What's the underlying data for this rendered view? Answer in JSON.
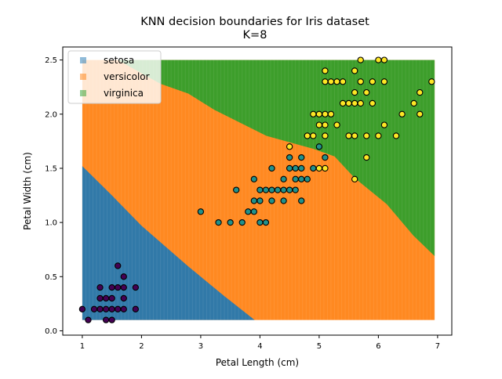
{
  "chart_data": {
    "type": "scatter",
    "title": "KNN decision boundaries for Iris dataset",
    "subtitle": "K=8",
    "xlabel": "Petal Length (cm)",
    "ylabel": "Petal Width (cm)",
    "xlim": [
      0.67,
      7.24
    ],
    "ylim": [
      -0.04,
      2.62
    ],
    "xticks": [
      1,
      2,
      3,
      4,
      5,
      6,
      7
    ],
    "xtick_labels": [
      "1",
      "2",
      "3",
      "4",
      "5",
      "6",
      "7"
    ],
    "yticks": [
      0.0,
      0.5,
      1.0,
      1.5,
      2.0,
      2.5
    ],
    "ytick_labels": [
      "0.0",
      "0.5",
      "1.0",
      "1.5",
      "2.0",
      "2.5"
    ],
    "grid": false,
    "legend_placement": "upper-left",
    "legend": [
      {
        "label": "setosa",
        "color": "#1f77b4"
      },
      {
        "label": "versicolor",
        "color": "#ff7f0e"
      },
      {
        "label": "virginica",
        "color": "#2ca02c"
      }
    ],
    "regions": {
      "extent_x": [
        1.0,
        6.95
      ],
      "extent_y": [
        0.1,
        2.5
      ],
      "setosa_boundary": [
        [
          1.0,
          1.52
        ],
        [
          1.5,
          1.25
        ],
        [
          2.0,
          0.97
        ],
        [
          2.8,
          0.59
        ],
        [
          3.4,
          0.32
        ],
        [
          3.91,
          0.1
        ]
      ],
      "virginica_boundary": [
        [
          1.6,
          2.5
        ],
        [
          2.32,
          2.28
        ],
        [
          2.79,
          2.19
        ],
        [
          3.23,
          2.04
        ],
        [
          4.11,
          1.8
        ],
        [
          4.9,
          1.68
        ],
        [
          5.26,
          1.61
        ],
        [
          5.6,
          1.41
        ],
        [
          6.14,
          1.17
        ],
        [
          6.59,
          0.88
        ],
        [
          6.95,
          0.69
        ]
      ]
    },
    "series": [
      {
        "class": "setosa",
        "color": "#440154",
        "points": [
          [
            1.1,
            0.1
          ],
          [
            1.4,
            0.1
          ],
          [
            1.5,
            0.1
          ],
          [
            1.0,
            0.2
          ],
          [
            1.2,
            0.2
          ],
          [
            1.3,
            0.2
          ],
          [
            1.4,
            0.2
          ],
          [
            1.5,
            0.2
          ],
          [
            1.6,
            0.2
          ],
          [
            1.7,
            0.2
          ],
          [
            1.9,
            0.2
          ],
          [
            1.3,
            0.3
          ],
          [
            1.4,
            0.3
          ],
          [
            1.5,
            0.3
          ],
          [
            1.7,
            0.3
          ],
          [
            1.3,
            0.4
          ],
          [
            1.5,
            0.4
          ],
          [
            1.6,
            0.4
          ],
          [
            1.7,
            0.4
          ],
          [
            1.9,
            0.4
          ],
          [
            1.7,
            0.5
          ],
          [
            1.6,
            0.6
          ]
        ]
      },
      {
        "class": "versicolor",
        "color": "#21918c",
        "points": [
          [
            3.3,
            1.0
          ],
          [
            3.5,
            1.0
          ],
          [
            3.7,
            1.0
          ],
          [
            4.0,
            1.0
          ],
          [
            4.1,
            1.0
          ],
          [
            3.0,
            1.1
          ],
          [
            3.8,
            1.1
          ],
          [
            3.9,
            1.1
          ],
          [
            3.9,
            1.2
          ],
          [
            4.0,
            1.2
          ],
          [
            4.2,
            1.2
          ],
          [
            4.4,
            1.2
          ],
          [
            4.7,
            1.2
          ],
          [
            3.6,
            1.3
          ],
          [
            4.0,
            1.3
          ],
          [
            4.1,
            1.3
          ],
          [
            4.2,
            1.3
          ],
          [
            4.3,
            1.3
          ],
          [
            4.4,
            1.3
          ],
          [
            4.5,
            1.3
          ],
          [
            4.6,
            1.3
          ],
          [
            3.9,
            1.4
          ],
          [
            4.4,
            1.4
          ],
          [
            4.6,
            1.4
          ],
          [
            4.7,
            1.4
          ],
          [
            4.8,
            1.4
          ],
          [
            4.2,
            1.5
          ],
          [
            4.5,
            1.5
          ],
          [
            4.6,
            1.5
          ],
          [
            4.7,
            1.5
          ],
          [
            4.9,
            1.5
          ],
          [
            4.5,
            1.6
          ],
          [
            4.7,
            1.6
          ],
          [
            5.1,
            1.6
          ],
          [
            5.0,
            1.7
          ]
        ]
      },
      {
        "class": "virginica",
        "color": "#fde725",
        "points": [
          [
            5.6,
            1.4
          ],
          [
            5.0,
            1.5
          ],
          [
            5.1,
            1.5
          ],
          [
            5.8,
            1.6
          ],
          [
            4.5,
            1.7
          ],
          [
            4.8,
            1.8
          ],
          [
            4.9,
            1.8
          ],
          [
            5.1,
            1.8
          ],
          [
            5.5,
            1.8
          ],
          [
            5.6,
            1.8
          ],
          [
            5.8,
            1.8
          ],
          [
            6.0,
            1.8
          ],
          [
            6.3,
            1.8
          ],
          [
            5.0,
            1.9
          ],
          [
            5.1,
            1.9
          ],
          [
            5.3,
            1.9
          ],
          [
            6.1,
            1.9
          ],
          [
            4.9,
            2.0
          ],
          [
            5.0,
            2.0
          ],
          [
            5.1,
            2.0
          ],
          [
            5.2,
            2.0
          ],
          [
            6.4,
            2.0
          ],
          [
            6.7,
            2.0
          ],
          [
            5.4,
            2.1
          ],
          [
            5.5,
            2.1
          ],
          [
            5.6,
            2.1
          ],
          [
            5.7,
            2.1
          ],
          [
            5.9,
            2.1
          ],
          [
            6.6,
            2.1
          ],
          [
            5.6,
            2.2
          ],
          [
            5.8,
            2.2
          ],
          [
            6.7,
            2.2
          ],
          [
            5.1,
            2.3
          ],
          [
            5.2,
            2.3
          ],
          [
            5.3,
            2.3
          ],
          [
            5.4,
            2.3
          ],
          [
            5.7,
            2.3
          ],
          [
            5.9,
            2.3
          ],
          [
            6.1,
            2.3
          ],
          [
            6.9,
            2.3
          ],
          [
            5.1,
            2.4
          ],
          [
            5.6,
            2.4
          ],
          [
            5.7,
            2.5
          ],
          [
            6.0,
            2.5
          ],
          [
            6.1,
            2.5
          ]
        ]
      }
    ]
  }
}
